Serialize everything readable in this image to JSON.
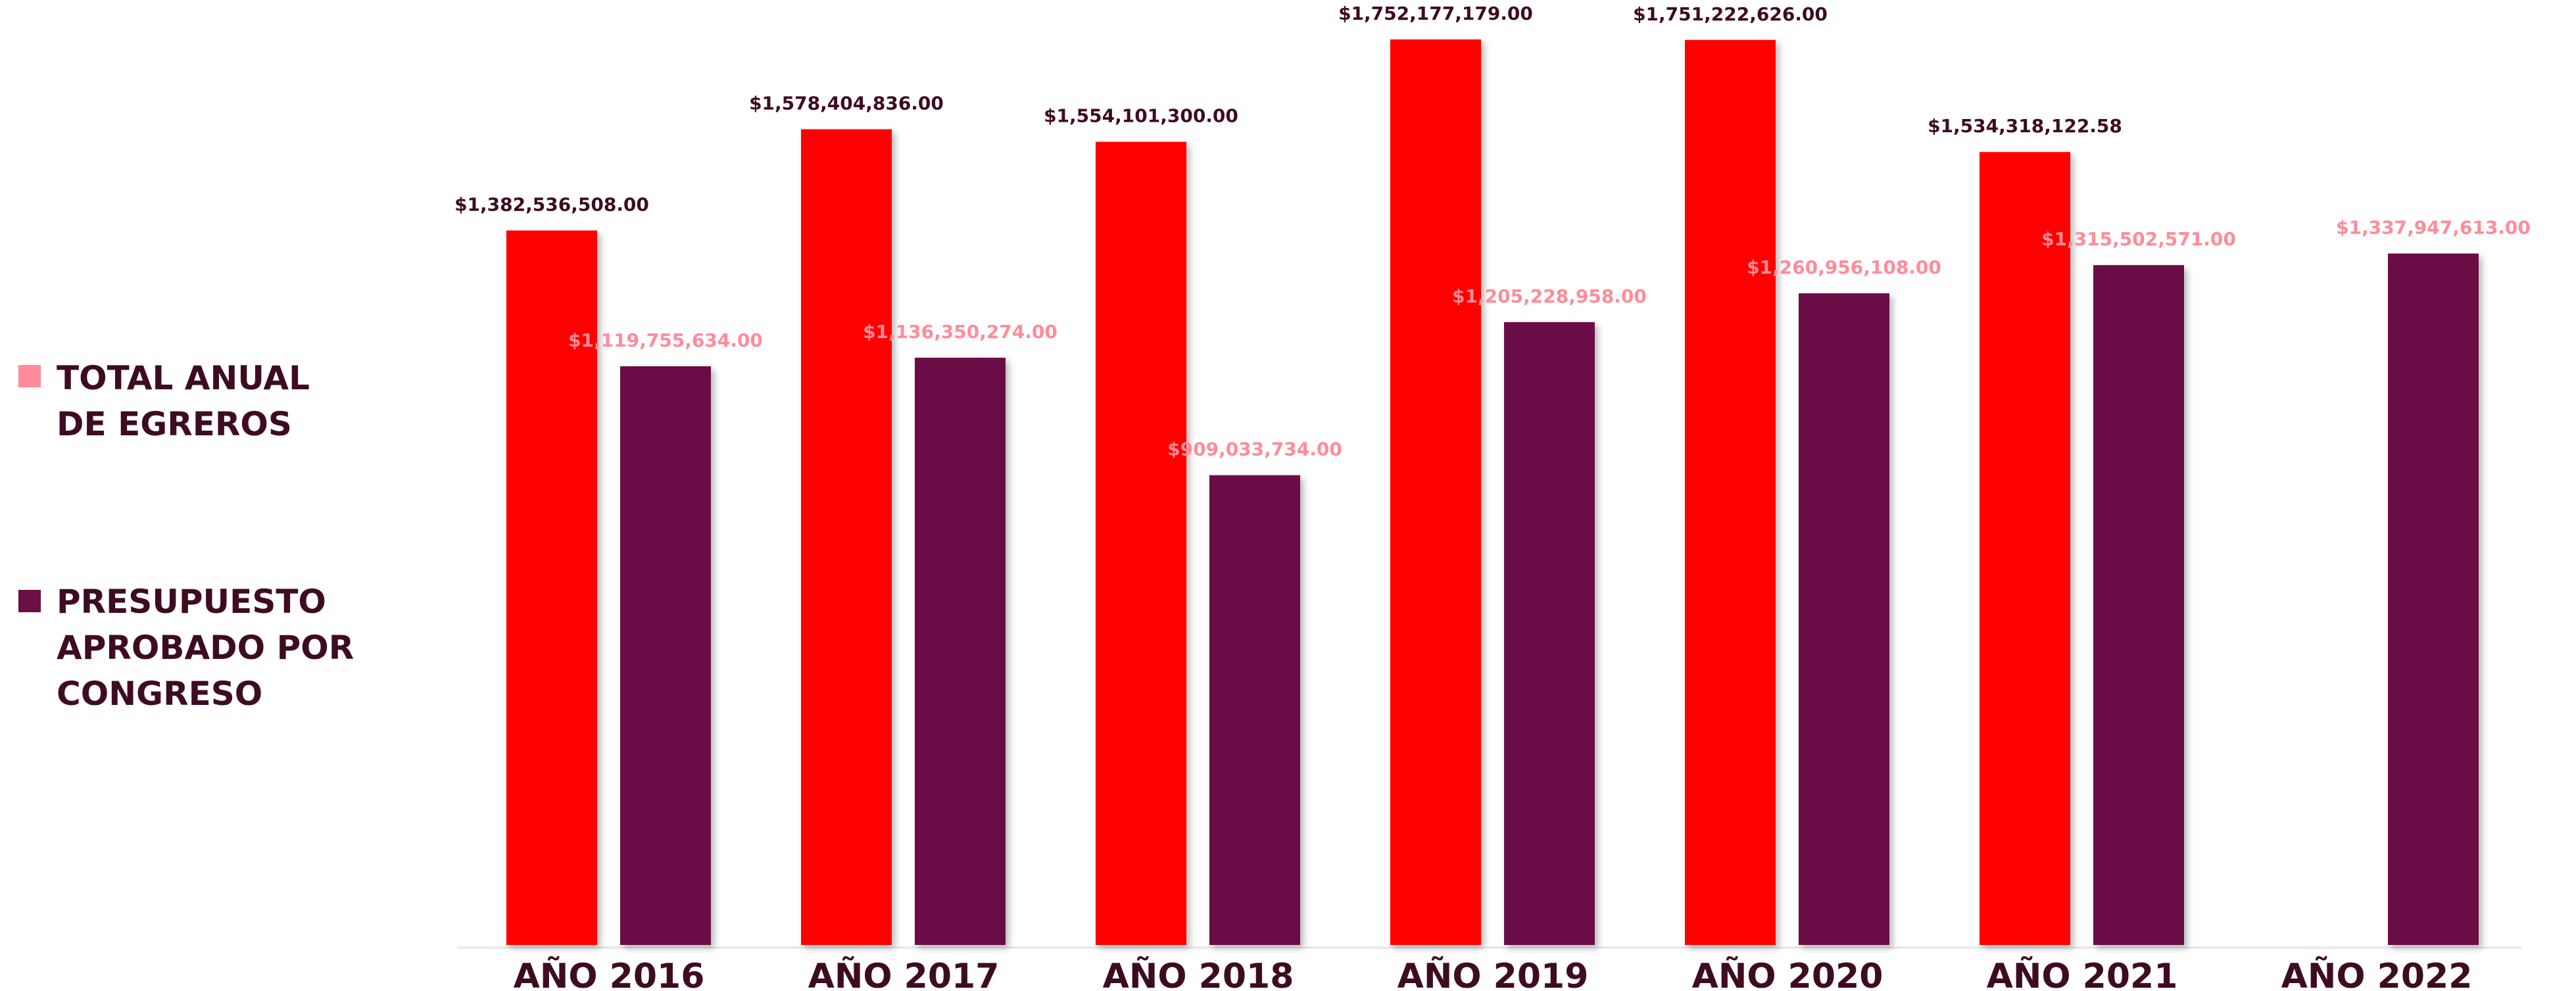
{
  "chart_data": {
    "type": "bar",
    "categories": [
      "AÑO 2016",
      "AÑO 2017",
      "AÑO 2018",
      "AÑO 2019",
      "AÑO 2020",
      "AÑO 2021",
      "AÑO 2022"
    ],
    "series": [
      {
        "name": "TOTAL ANUAL DE EGREROS",
        "legend_lines": [
          "TOTAL ANUAL",
          "DE EGREROS"
        ],
        "color": "#ff0000",
        "legend_color": "#ff8c98",
        "label_color": "#3e0c22",
        "values": [
          1382536508.0,
          1578404836.0,
          1554101300.0,
          1752177179.0,
          1751222626.0,
          1534318122.58,
          null
        ],
        "labels": [
          "$1,382,536,508.00",
          "$1,578,404,836.00",
          "$1,554,101,300.00",
          "$1,752,177,179.00",
          "$1,751,222,626.00",
          "$1,534,318,122.58",
          ""
        ]
      },
      {
        "name": "PRESUPUESTO APROBADO POR CONGRESO",
        "legend_lines": [
          "PRESUPUESTO",
          "APROBADO POR",
          "CONGRESO"
        ],
        "color": "#6b0f46",
        "legend_color": "#6b0f46",
        "label_color": "#ff8c98",
        "values": [
          1119755634.0,
          1136350274.0,
          909033734.0,
          1205228958.0,
          1260956108.0,
          1315502571.0,
          1337947613.0
        ],
        "labels": [
          "$1,119,755,634.00",
          "$1,136,350,274.00",
          "$909,033,734.00",
          "$1,205,228,958.00",
          "$1,260,956,108.00",
          "$1,315,502,571.00",
          "$1,337,947,613.00"
        ]
      }
    ],
    "ylim": [
      0,
      1752177179
    ],
    "grid": false,
    "legend_position": "left",
    "axis_label_color": "#3e0c22"
  }
}
